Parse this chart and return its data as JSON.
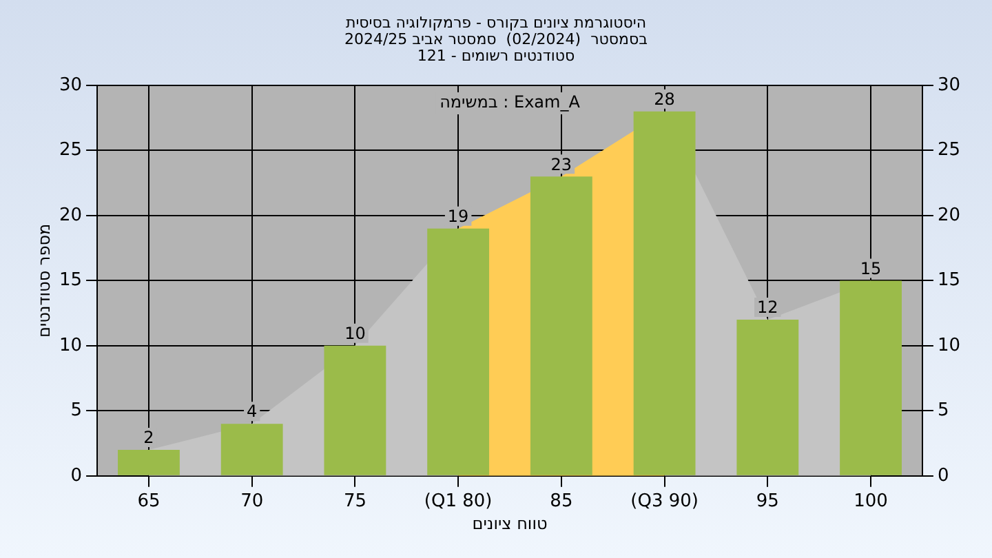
{
  "chart_data": {
    "type": "bar",
    "title": "היסטוגרמת ציונים בקורס - פרמקולוגיה בסיסית\nבסמסטר  (02/2024)  סמסטר אביב 2024/25\nסטודנטים רשומים - 121",
    "xlabel": "טווח ציונים",
    "ylabel": "מספר סטודנטים",
    "annotations": [
      "במשימה : Exam_A"
    ],
    "categories": [
      "65",
      "70",
      "75",
      "(Q1 80)",
      "85",
      "(Q3 90)",
      "95",
      "100"
    ],
    "series": [
      {
        "type": "area",
        "color": "#c4c4c4",
        "values": [
          2,
          4,
          10,
          19,
          null,
          28,
          12,
          15
        ]
      },
      {
        "type": "area",
        "color": "#ffcc55",
        "values": [
          null,
          null,
          null,
          19,
          23,
          28,
          null,
          null
        ]
      },
      {
        "color": "#9bbb4a",
        "values": [
          2,
          4,
          10,
          19,
          23,
          28,
          12,
          15
        ],
        "value_labels": [
          "2",
          "4",
          "10",
          "19",
          "23",
          "28",
          "12",
          "15"
        ]
      }
    ],
    "ylim": [
      0,
      30
    ],
    "yticks": [
      0,
      5,
      10,
      15,
      20,
      25,
      30
    ],
    "y2lim": [
      0,
      30
    ],
    "y2ticks": [
      0,
      5,
      10,
      15,
      20,
      25,
      30
    ],
    "grid": true,
    "legend": false
  }
}
